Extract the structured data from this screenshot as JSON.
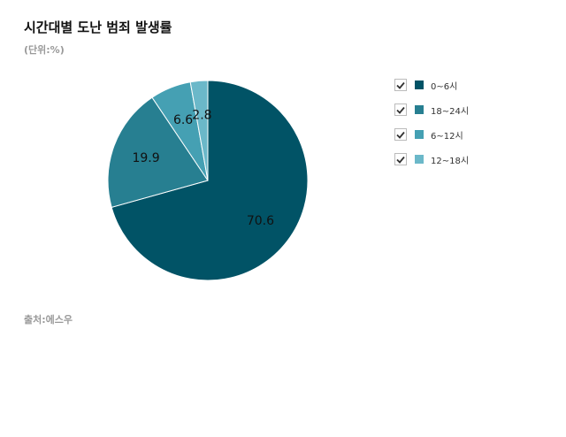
{
  "chart_data": {
    "type": "pie",
    "title": "시간대별 도난 범죄 발생률",
    "unit_label": "(단위:%)",
    "source": "출처:에스우",
    "categories": [
      "0~6시",
      "18~24시",
      "6~12시",
      "12~18시"
    ],
    "values": [
      70.6,
      19.9,
      6.6,
      2.8
    ],
    "colors": [
      "#015366",
      "#277f91",
      "#45a0b3",
      "#6bb8c9"
    ],
    "legend_position": "right"
  }
}
